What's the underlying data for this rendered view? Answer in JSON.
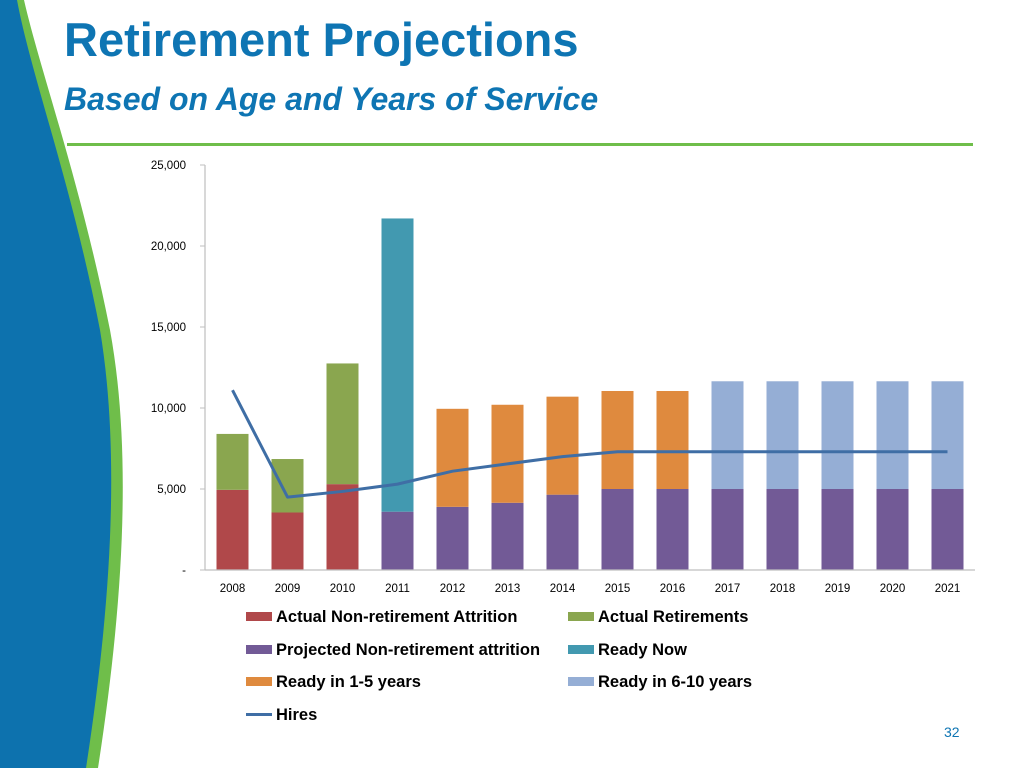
{
  "slide": {
    "title": "Retirement Projections",
    "subtitle": "Based on Age and Years of Service",
    "page_number": "32"
  },
  "colors": {
    "title": "#0e75b3",
    "rule": "#6fbe4a",
    "deco_blue": "#0d72ae",
    "deco_green": "#6fbe4a"
  },
  "chart_data": {
    "type": "bar",
    "stacked": true,
    "categories": [
      "2008",
      "2009",
      "2010",
      "2011",
      "2012",
      "2013",
      "2014",
      "2015",
      "2016",
      "2017",
      "2018",
      "2019",
      "2020",
      "2021"
    ],
    "ylim": [
      0,
      25000
    ],
    "yticks": [
      0,
      5000,
      10000,
      15000,
      20000,
      25000
    ],
    "ytick_labels": [
      "-",
      "5,000",
      "10,000",
      "15,000",
      "20,000",
      "25,000"
    ],
    "grid": false,
    "legend_position": "bottom",
    "series": [
      {
        "name": "Actual Non-retirement Attrition",
        "color": "#b0484a",
        "values": [
          4950,
          3550,
          5300,
          0,
          0,
          0,
          0,
          0,
          0,
          0,
          0,
          0,
          0,
          0
        ]
      },
      {
        "name": "Actual Retirements",
        "color": "#8aa64f",
        "values": [
          3450,
          3300,
          7450,
          0,
          0,
          0,
          0,
          0,
          0,
          0,
          0,
          0,
          0,
          0
        ]
      },
      {
        "name": "Projected Non-retirement attrition",
        "color": "#725a96",
        "values": [
          0,
          0,
          0,
          3600,
          3900,
          4150,
          4650,
          5000,
          5000,
          5000,
          5000,
          5000,
          5000,
          5000
        ]
      },
      {
        "name": "Ready Now",
        "color": "#4299b0",
        "values": [
          0,
          0,
          0,
          18100,
          0,
          0,
          0,
          0,
          0,
          0,
          0,
          0,
          0,
          0
        ]
      },
      {
        "name": "Ready in 1-5 years",
        "color": "#df8a3e",
        "values": [
          0,
          0,
          0,
          0,
          6050,
          6050,
          6050,
          6050,
          6050,
          0,
          0,
          0,
          0,
          0
        ]
      },
      {
        "name": "Ready in 6-10 years",
        "color": "#95aed5",
        "values": [
          0,
          0,
          0,
          0,
          0,
          0,
          0,
          0,
          0,
          6650,
          6650,
          6650,
          6650,
          6650
        ]
      }
    ],
    "line_series": [
      {
        "name": "Hires",
        "color": "#3f6ea5",
        "values": [
          11100,
          4500,
          4850,
          5300,
          6100,
          6550,
          7000,
          7300,
          7300,
          7300,
          7300,
          7300,
          7300,
          7300
        ]
      }
    ]
  }
}
